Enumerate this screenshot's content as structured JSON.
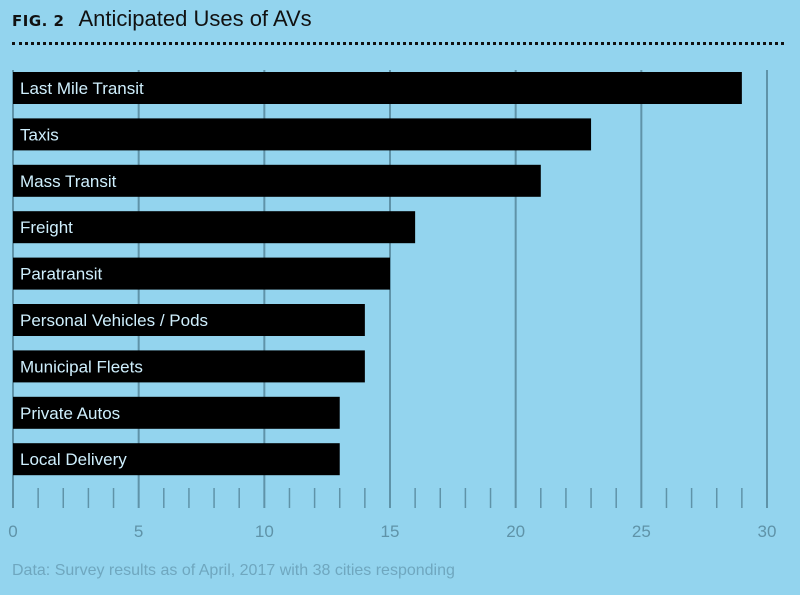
{
  "header": {
    "fig_label": "FIG. 2",
    "title": "Anticipated Uses of AVs"
  },
  "chart_data": {
    "type": "bar",
    "orientation": "horizontal",
    "title": "Anticipated Uses of AVs",
    "categories": [
      "Last Mile Transit",
      "Taxis",
      "Mass Transit",
      "Freight",
      "Paratransit",
      "Personal Vehicles / Pods",
      "Municipal Fleets",
      "Private Autos",
      "Local Delivery"
    ],
    "values": [
      29,
      23,
      21,
      16,
      15,
      14,
      14,
      13,
      13
    ],
    "xlim": [
      0,
      30
    ],
    "xticks": [
      0,
      5,
      10,
      15,
      20,
      25,
      30
    ],
    "xlabel": "",
    "ylabel": "",
    "grid": true,
    "colors": {
      "background": "#93d4ee",
      "bar": "#000000",
      "bar_label": "#cfeffd",
      "grid": "#5f93a8",
      "tick_label": "#5f93a8"
    }
  },
  "footnote": "Data: Survey results as of April, 2017 with 38 cities responding"
}
